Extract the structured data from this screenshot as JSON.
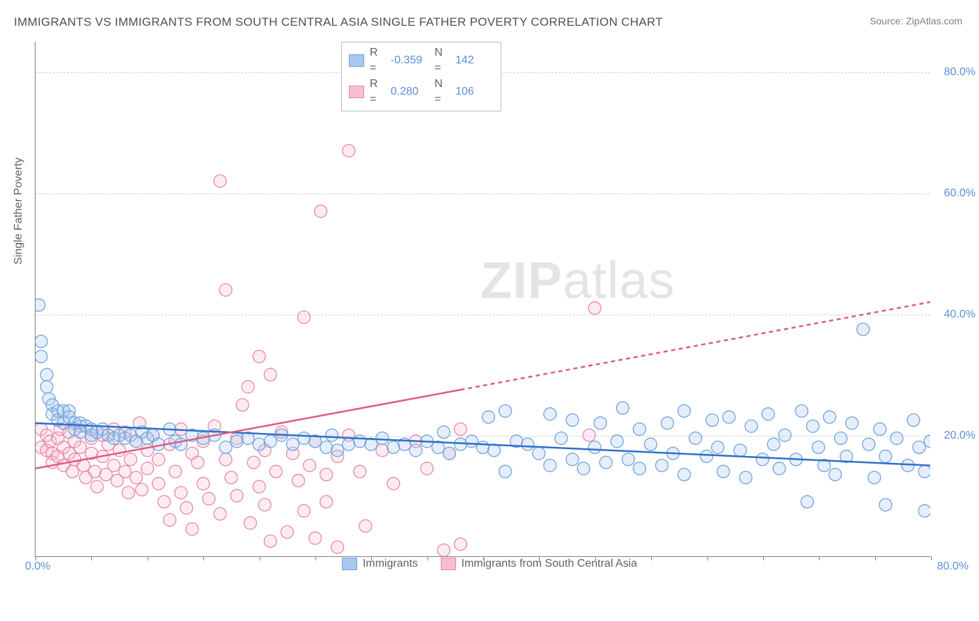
{
  "title": "IMMIGRANTS VS IMMIGRANTS FROM SOUTH CENTRAL ASIA SINGLE FATHER POVERTY CORRELATION CHART",
  "source": "Source: ZipAtlas.com",
  "watermark_a": "ZIP",
  "watermark_b": "atlas",
  "yaxis_title": "Single Father Poverty",
  "chart": {
    "type": "scatter",
    "background_color": "#ffffff",
    "grid_color": "#cfcfcf",
    "axis_color": "#808080",
    "tick_color": "#5b8fd6",
    "xlim": [
      0,
      80
    ],
    "ylim": [
      0,
      85
    ],
    "yticks": [
      {
        "v": 20,
        "label": "20.0%"
      },
      {
        "v": 40,
        "label": "40.0%"
      },
      {
        "v": 60,
        "label": "60.0%"
      },
      {
        "v": 80,
        "label": "80.0%"
      }
    ],
    "xticks_minor": [
      0,
      5,
      10,
      15,
      20,
      25,
      30,
      35,
      40,
      45,
      50,
      55,
      60,
      65,
      70,
      75,
      80
    ],
    "xtick_labels": {
      "left": "0.0%",
      "right": "80.0%"
    },
    "marker_radius": 9,
    "marker_stroke_width": 1.3,
    "marker_fill_opacity": 0.3,
    "line_width": 2.5
  },
  "series_blue": {
    "label": "Immigrants",
    "stat_r": "-0.359",
    "stat_n": "142",
    "color_fill": "#a8c8f0",
    "color_stroke": "#6fa3e0",
    "line_color": "#2f6fc9",
    "trend": {
      "x1": 0,
      "y1": 22.0,
      "x2": 80,
      "y2": 15.0
    },
    "points": [
      [
        0.3,
        41.5
      ],
      [
        0.5,
        35.5
      ],
      [
        0.5,
        33.0
      ],
      [
        1.0,
        28.0
      ],
      [
        1.0,
        30.0
      ],
      [
        1.2,
        26.0
      ],
      [
        1.5,
        25.0
      ],
      [
        1.5,
        23.5
      ],
      [
        2.0,
        24.0
      ],
      [
        2.0,
        22.5
      ],
      [
        2.5,
        24.0
      ],
      [
        2.5,
        22.0
      ],
      [
        3.0,
        24.0
      ],
      [
        3.0,
        23.0
      ],
      [
        3.5,
        22.0
      ],
      [
        3.5,
        21.0
      ],
      [
        4.0,
        22.0
      ],
      [
        4.0,
        20.5
      ],
      [
        4.5,
        21.5
      ],
      [
        5.0,
        21.0
      ],
      [
        5.0,
        20.0
      ],
      [
        5.5,
        20.5
      ],
      [
        6.0,
        21.0
      ],
      [
        6.5,
        20.0
      ],
      [
        7.0,
        19.5
      ],
      [
        7.5,
        20.0
      ],
      [
        8.0,
        19.5
      ],
      [
        8.5,
        20.0
      ],
      [
        9.0,
        19.0
      ],
      [
        9.5,
        20.5
      ],
      [
        10.0,
        19.5
      ],
      [
        10.5,
        20.0
      ],
      [
        11.0,
        18.5
      ],
      [
        12.0,
        21.0
      ],
      [
        12.5,
        19.0
      ],
      [
        13.0,
        18.5
      ],
      [
        14.0,
        20.0
      ],
      [
        15.0,
        19.5
      ],
      [
        16.0,
        20.0
      ],
      [
        17.0,
        18.0
      ],
      [
        18.0,
        19.0
      ],
      [
        19.0,
        19.5
      ],
      [
        20.0,
        18.5
      ],
      [
        21.0,
        19.0
      ],
      [
        22.0,
        20.0
      ],
      [
        23.0,
        18.5
      ],
      [
        24.0,
        19.5
      ],
      [
        25.0,
        19.0
      ],
      [
        26.0,
        18.0
      ],
      [
        26.5,
        20.0
      ],
      [
        27.0,
        17.5
      ],
      [
        28.0,
        18.5
      ],
      [
        29.0,
        19.0
      ],
      [
        30.0,
        18.5
      ],
      [
        31.0,
        19.5
      ],
      [
        32.0,
        18.0
      ],
      [
        33.0,
        18.5
      ],
      [
        34.0,
        17.5
      ],
      [
        35.0,
        19.0
      ],
      [
        36.0,
        18.0
      ],
      [
        36.5,
        20.5
      ],
      [
        37.0,
        17.0
      ],
      [
        38.0,
        18.5
      ],
      [
        39.0,
        19.0
      ],
      [
        40.0,
        18.0
      ],
      [
        40.5,
        23.0
      ],
      [
        41.0,
        17.5
      ],
      [
        42.0,
        24.0
      ],
      [
        42.0,
        14.0
      ],
      [
        43.0,
        19.0
      ],
      [
        44.0,
        18.5
      ],
      [
        45.0,
        17.0
      ],
      [
        46.0,
        23.5
      ],
      [
        46.0,
        15.0
      ],
      [
        47.0,
        19.5
      ],
      [
        48.0,
        16.0
      ],
      [
        48.0,
        22.5
      ],
      [
        49.0,
        14.5
      ],
      [
        50.0,
        18.0
      ],
      [
        50.5,
        22.0
      ],
      [
        51.0,
        15.5
      ],
      [
        52.0,
        19.0
      ],
      [
        52.5,
        24.5
      ],
      [
        53.0,
        16.0
      ],
      [
        54.0,
        14.5
      ],
      [
        54.0,
        21.0
      ],
      [
        55.0,
        18.5
      ],
      [
        56.0,
        15.0
      ],
      [
        56.5,
        22.0
      ],
      [
        57.0,
        17.0
      ],
      [
        58.0,
        24.0
      ],
      [
        58.0,
        13.5
      ],
      [
        59.0,
        19.5
      ],
      [
        60.0,
        16.5
      ],
      [
        60.5,
        22.5
      ],
      [
        61.0,
        18.0
      ],
      [
        61.5,
        14.0
      ],
      [
        62.0,
        23.0
      ],
      [
        63.0,
        17.5
      ],
      [
        63.5,
        13.0
      ],
      [
        64.0,
        21.5
      ],
      [
        65.0,
        16.0
      ],
      [
        65.5,
        23.5
      ],
      [
        66.0,
        18.5
      ],
      [
        66.5,
        14.5
      ],
      [
        67.0,
        20.0
      ],
      [
        68.0,
        16.0
      ],
      [
        68.5,
        24.0
      ],
      [
        69.0,
        9.0
      ],
      [
        69.5,
        21.5
      ],
      [
        70.0,
        18.0
      ],
      [
        70.5,
        15.0
      ],
      [
        71.0,
        23.0
      ],
      [
        71.5,
        13.5
      ],
      [
        72.0,
        19.5
      ],
      [
        72.5,
        16.5
      ],
      [
        73.0,
        22.0
      ],
      [
        74.0,
        37.5
      ],
      [
        74.5,
        18.5
      ],
      [
        75.0,
        13.0
      ],
      [
        75.5,
        21.0
      ],
      [
        76.0,
        16.5
      ],
      [
        76.0,
        8.5
      ],
      [
        77.0,
        19.5
      ],
      [
        78.0,
        15.0
      ],
      [
        78.5,
        22.5
      ],
      [
        79.0,
        18.0
      ],
      [
        79.5,
        14.0
      ],
      [
        79.5,
        7.5
      ],
      [
        80.0,
        19.0
      ]
    ]
  },
  "series_pink": {
    "label": "Immigrants from South Central Asia",
    "stat_r": "0.280",
    "stat_n": "106",
    "color_fill": "#f6bfcf",
    "color_stroke": "#e987a6",
    "line_color": "#e05a87",
    "trend_solid": {
      "x1": 0,
      "y1": 14.5,
      "x2": 38,
      "y2": 27.5
    },
    "trend_dashed": {
      "x1": 38,
      "y1": 27.5,
      "x2": 80,
      "y2": 42.0
    },
    "points": [
      [
        0.5,
        21.0
      ],
      [
        0.5,
        18.0
      ],
      [
        1.0,
        20.0
      ],
      [
        1.0,
        17.5
      ],
      [
        1.3,
        19.0
      ],
      [
        1.5,
        17.0
      ],
      [
        1.5,
        15.5
      ],
      [
        2.0,
        19.5
      ],
      [
        2.0,
        16.5
      ],
      [
        2.2,
        21.0
      ],
      [
        2.5,
        18.0
      ],
      [
        2.5,
        15.0
      ],
      [
        3.0,
        20.5
      ],
      [
        3.0,
        17.0
      ],
      [
        3.3,
        14.0
      ],
      [
        3.5,
        19.0
      ],
      [
        3.5,
        16.0
      ],
      [
        4.0,
        21.5
      ],
      [
        4.0,
        18.0
      ],
      [
        4.3,
        15.0
      ],
      [
        4.5,
        13.0
      ],
      [
        5.0,
        19.5
      ],
      [
        5.0,
        17.0
      ],
      [
        5.3,
        14.0
      ],
      [
        5.5,
        11.5
      ],
      [
        6.0,
        20.0
      ],
      [
        6.0,
        16.5
      ],
      [
        6.3,
        13.5
      ],
      [
        6.5,
        18.5
      ],
      [
        7.0,
        15.0
      ],
      [
        7.0,
        21.0
      ],
      [
        7.3,
        12.5
      ],
      [
        7.5,
        17.5
      ],
      [
        8.0,
        14.0
      ],
      [
        8.0,
        20.5
      ],
      [
        8.3,
        10.5
      ],
      [
        8.5,
        16.0
      ],
      [
        9.0,
        19.0
      ],
      [
        9.0,
        13.0
      ],
      [
        9.3,
        22.0
      ],
      [
        9.5,
        11.0
      ],
      [
        10.0,
        17.5
      ],
      [
        10.0,
        14.5
      ],
      [
        10.5,
        20.0
      ],
      [
        11.0,
        12.0
      ],
      [
        11.0,
        16.0
      ],
      [
        11.5,
        9.0
      ],
      [
        12.0,
        18.5
      ],
      [
        12.0,
        6.0
      ],
      [
        12.5,
        14.0
      ],
      [
        13.0,
        21.0
      ],
      [
        13.0,
        10.5
      ],
      [
        13.5,
        8.0
      ],
      [
        14.0,
        17.0
      ],
      [
        14.0,
        4.5
      ],
      [
        14.5,
        15.5
      ],
      [
        15.0,
        19.0
      ],
      [
        15.0,
        12.0
      ],
      [
        15.5,
        9.5
      ],
      [
        16.0,
        21.5
      ],
      [
        16.5,
        62.0
      ],
      [
        16.5,
        7.0
      ],
      [
        17.0,
        16.0
      ],
      [
        17.0,
        44.0
      ],
      [
        17.5,
        13.0
      ],
      [
        18.0,
        19.5
      ],
      [
        18.0,
        10.0
      ],
      [
        18.5,
        25.0
      ],
      [
        19.0,
        28.0
      ],
      [
        19.2,
        5.5
      ],
      [
        19.5,
        15.5
      ],
      [
        20.0,
        33.0
      ],
      [
        20.0,
        11.5
      ],
      [
        20.5,
        8.5
      ],
      [
        20.5,
        17.5
      ],
      [
        21.0,
        30.0
      ],
      [
        21.0,
        2.5
      ],
      [
        21.5,
        14.0
      ],
      [
        22.0,
        20.5
      ],
      [
        22.5,
        4.0
      ],
      [
        23.0,
        17.0
      ],
      [
        23.5,
        12.5
      ],
      [
        24.0,
        39.5
      ],
      [
        24.0,
        7.5
      ],
      [
        24.5,
        15.0
      ],
      [
        25.0,
        19.0
      ],
      [
        25.0,
        3.0
      ],
      [
        25.5,
        57.0
      ],
      [
        26.0,
        13.5
      ],
      [
        26.0,
        9.0
      ],
      [
        27.0,
        16.5
      ],
      [
        27.0,
        1.5
      ],
      [
        28.0,
        20.0
      ],
      [
        28.0,
        67.0
      ],
      [
        29.0,
        14.0
      ],
      [
        29.5,
        5.0
      ],
      [
        31.0,
        17.5
      ],
      [
        32.0,
        12.0
      ],
      [
        34.0,
        19.0
      ],
      [
        35.0,
        14.5
      ],
      [
        36.5,
        1.0
      ],
      [
        37.0,
        17.0
      ],
      [
        38.0,
        21.0
      ],
      [
        38.0,
        2.0
      ],
      [
        50.0,
        41.0
      ],
      [
        49.5,
        20.0
      ]
    ]
  },
  "legend_top": {
    "r_label": "R =",
    "n_label": "N ="
  },
  "swatch_blue": {
    "fill": "#a8c8f0",
    "stroke": "#6fa3e0"
  },
  "swatch_pink": {
    "fill": "#f6bfcf",
    "stroke": "#e987a6"
  }
}
